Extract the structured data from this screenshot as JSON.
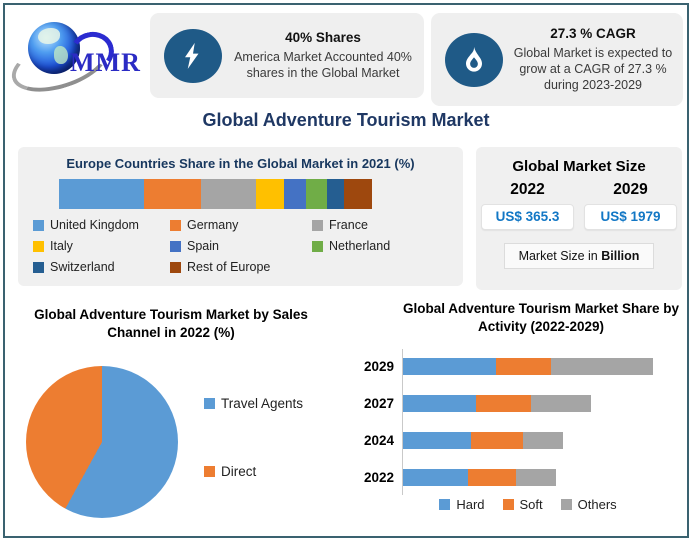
{
  "brand": {
    "logo_text": "MMR"
  },
  "header": {
    "cards": [
      {
        "icon": "lightning-icon",
        "title": "40% Shares",
        "body": "America Market Accounted 40% shares in the Global Market"
      },
      {
        "icon": "flame-icon",
        "title": "27.3 % CAGR",
        "body": "Global Market is expected to grow at a CAGR of 27.3 % during 2023-2029"
      }
    ],
    "page_title": "Global Adventure Tourism Market"
  },
  "market_size": {
    "title": "Global Market Size",
    "columns": [
      {
        "year": "2022",
        "value": "US$ 365.3"
      },
      {
        "year": "2029",
        "value": "US$ 1979"
      }
    ],
    "footnote_prefix": "Market Size in ",
    "footnote_bold": "Billion"
  },
  "colors": {
    "frame_border": "#3A6270",
    "card_background": "#EFEFEF",
    "panel_background": "#F0F0F0",
    "title_navy": "#1F3864",
    "panel_title_navy": "#17375E",
    "icon_circle_blue": "#1F5A87",
    "value_blue": "#1277C5"
  },
  "chart_data": [
    {
      "id": "europe-share",
      "type": "bar",
      "subtype": "stacked-horizontal",
      "title": "Europe Countries Share in the Global Market in 2021 (%)",
      "unit": "% share (estimated from segment widths)",
      "series": [
        {
          "name": "United Kingdom",
          "value": 27,
          "color": "#5B9BD5"
        },
        {
          "name": "Germany",
          "value": 18.5,
          "color": "#ED7D31"
        },
        {
          "name": "France",
          "value": 17.5,
          "color": "#A5A5A5"
        },
        {
          "name": "Italy",
          "value": 9,
          "color": "#FFC000"
        },
        {
          "name": "Spain",
          "value": 7,
          "color": "#4472C4"
        },
        {
          "name": "Netherland",
          "value": 6.5,
          "color": "#70AD47"
        },
        {
          "name": "Switzerland",
          "value": 5.5,
          "color": "#255E91"
        },
        {
          "name": "Rest of Europe",
          "value": 9,
          "color": "#9E480E"
        }
      ],
      "legend_position": "below",
      "axes": "none"
    },
    {
      "id": "sales-channel-pie",
      "type": "pie",
      "title": "Global Adventure Tourism Market by Sales Channel in 2022 (%)",
      "start_angle_deg": 0,
      "direction": "clockwise",
      "slices": [
        {
          "label": "Travel Agents",
          "value": 58,
          "color": "#5B9BD5"
        },
        {
          "label": "Direct",
          "value": 42,
          "color": "#ED7D31"
        }
      ],
      "legend_position": "right"
    },
    {
      "id": "activity-share",
      "type": "bar",
      "subtype": "stacked-horizontal",
      "title": "Global Adventure Tourism Market Share by Activity (2022-2029)",
      "categories": [
        "2029",
        "2027",
        "2024",
        "2022"
      ],
      "xmax": 100,
      "unit": "relative units (estimated, 100 = longest bar)",
      "series": [
        {
          "name": "Hard",
          "color": "#5B9BD5",
          "values": [
            37,
            29,
            27,
            26
          ]
        },
        {
          "name": "Soft",
          "color": "#ED7D31",
          "values": [
            22,
            22,
            21,
            19
          ]
        },
        {
          "name": "Others",
          "color": "#A5A5A5",
          "values": [
            41,
            24,
            16,
            16
          ]
        }
      ],
      "legend_position": "below",
      "gridlines": false
    }
  ]
}
